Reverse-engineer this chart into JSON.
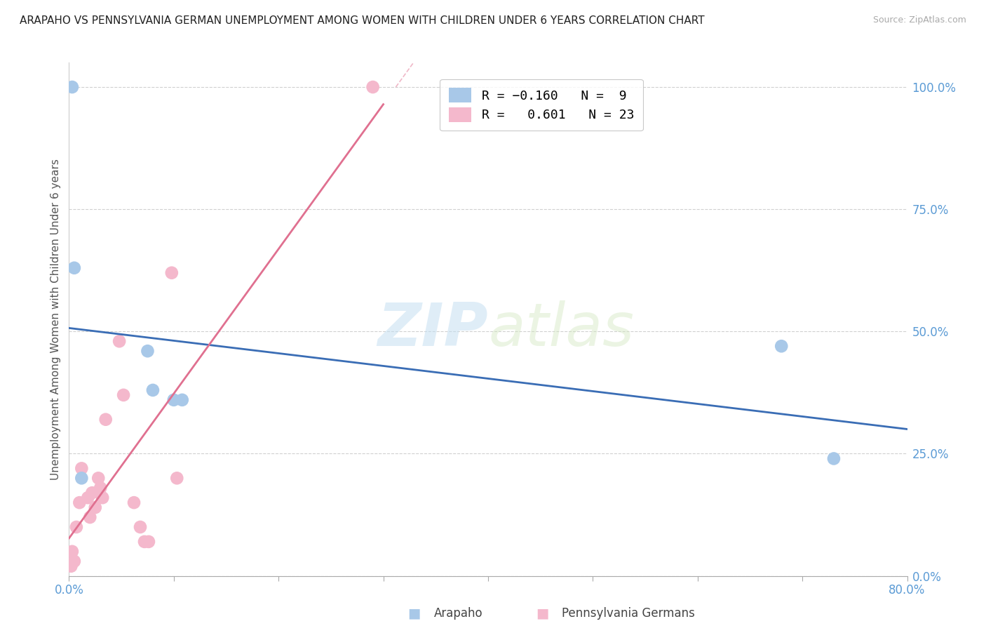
{
  "title": "ARAPAHO VS PENNSYLVANIA GERMAN UNEMPLOYMENT AMONG WOMEN WITH CHILDREN UNDER 6 YEARS CORRELATION CHART",
  "source": "Source: ZipAtlas.com",
  "ylabel": "Unemployment Among Women with Children Under 6 years",
  "xlim": [
    0.0,
    0.8
  ],
  "ylim": [
    -0.02,
    1.1
  ],
  "plot_ylim": [
    0.0,
    1.05
  ],
  "right_yticks": [
    0.0,
    0.25,
    0.5,
    0.75,
    1.0
  ],
  "right_yticklabels": [
    "0.0%",
    "25.0%",
    "50.0%",
    "75.0%",
    "100.0%"
  ],
  "xticks": [
    0.0,
    0.1,
    0.2,
    0.3,
    0.4,
    0.5,
    0.6,
    0.7,
    0.8
  ],
  "legend_r1": "R = -0.160",
  "legend_n1": "N =  9",
  "legend_r2": "R =  0.601",
  "legend_n2": "N = 23",
  "arapaho_color": "#a8c8e8",
  "penn_german_color": "#f4b8cc",
  "arapaho_line_color": "#3a6db5",
  "penn_german_line_color": "#e07090",
  "arapaho_x": [
    0.003,
    0.005,
    0.012,
    0.075,
    0.08,
    0.1,
    0.108,
    0.68,
    0.73
  ],
  "arapaho_y": [
    1.0,
    0.63,
    0.2,
    0.46,
    0.38,
    0.36,
    0.36,
    0.47,
    0.24
  ],
  "penn_german_x": [
    0.002,
    0.003,
    0.005,
    0.007,
    0.01,
    0.012,
    0.018,
    0.02,
    0.022,
    0.025,
    0.028,
    0.03,
    0.032,
    0.035,
    0.048,
    0.052,
    0.062,
    0.068,
    0.072,
    0.076,
    0.098,
    0.103,
    0.29
  ],
  "penn_german_y": [
    0.02,
    0.05,
    0.03,
    0.1,
    0.15,
    0.22,
    0.16,
    0.12,
    0.17,
    0.14,
    0.2,
    0.18,
    0.16,
    0.32,
    0.48,
    0.37,
    0.15,
    0.1,
    0.07,
    0.07,
    0.62,
    0.2,
    1.0
  ],
  "watermark_zip": "ZIP",
  "watermark_atlas": "atlas",
  "background_color": "#ffffff",
  "grid_color": "#d0d0d0",
  "title_fontsize": 11,
  "tick_label_color": "#5b9bd5",
  "source_color": "#aaaaaa",
  "ylabel_color": "#555555"
}
